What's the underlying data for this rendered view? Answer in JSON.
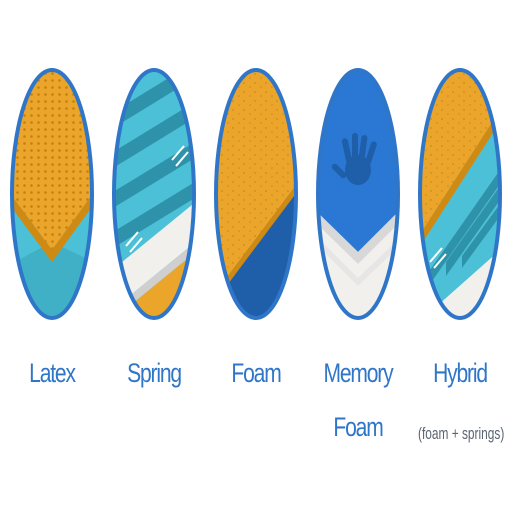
{
  "items": [
    {
      "name": "latex",
      "label": "Latex",
      "label2": ""
    },
    {
      "name": "spring",
      "label": "Spring",
      "label2": ""
    },
    {
      "name": "foam",
      "label": "Foam",
      "label2": ""
    },
    {
      "name": "memory-foam",
      "label": "Memory",
      "label2": "Foam"
    },
    {
      "name": "hybrid",
      "label": "Hybrid",
      "label2": "",
      "sub": "(foam + springs)"
    }
  ],
  "colors": {
    "outline": "#2f76c9",
    "orange": "#eaa52a",
    "orange_dark": "#cf8a14",
    "teal": "#4cc0d6",
    "teal_dark": "#2e93aa",
    "teal_light": "#7fd6e6",
    "navy": "#1f5ea8",
    "blue": "#2a78d3",
    "cream": "#f1f0ec",
    "label": "#2f76c9",
    "sublabel": "#5a6470"
  },
  "icons": {
    "memory_foam_symbol": "hand-print-icon"
  }
}
